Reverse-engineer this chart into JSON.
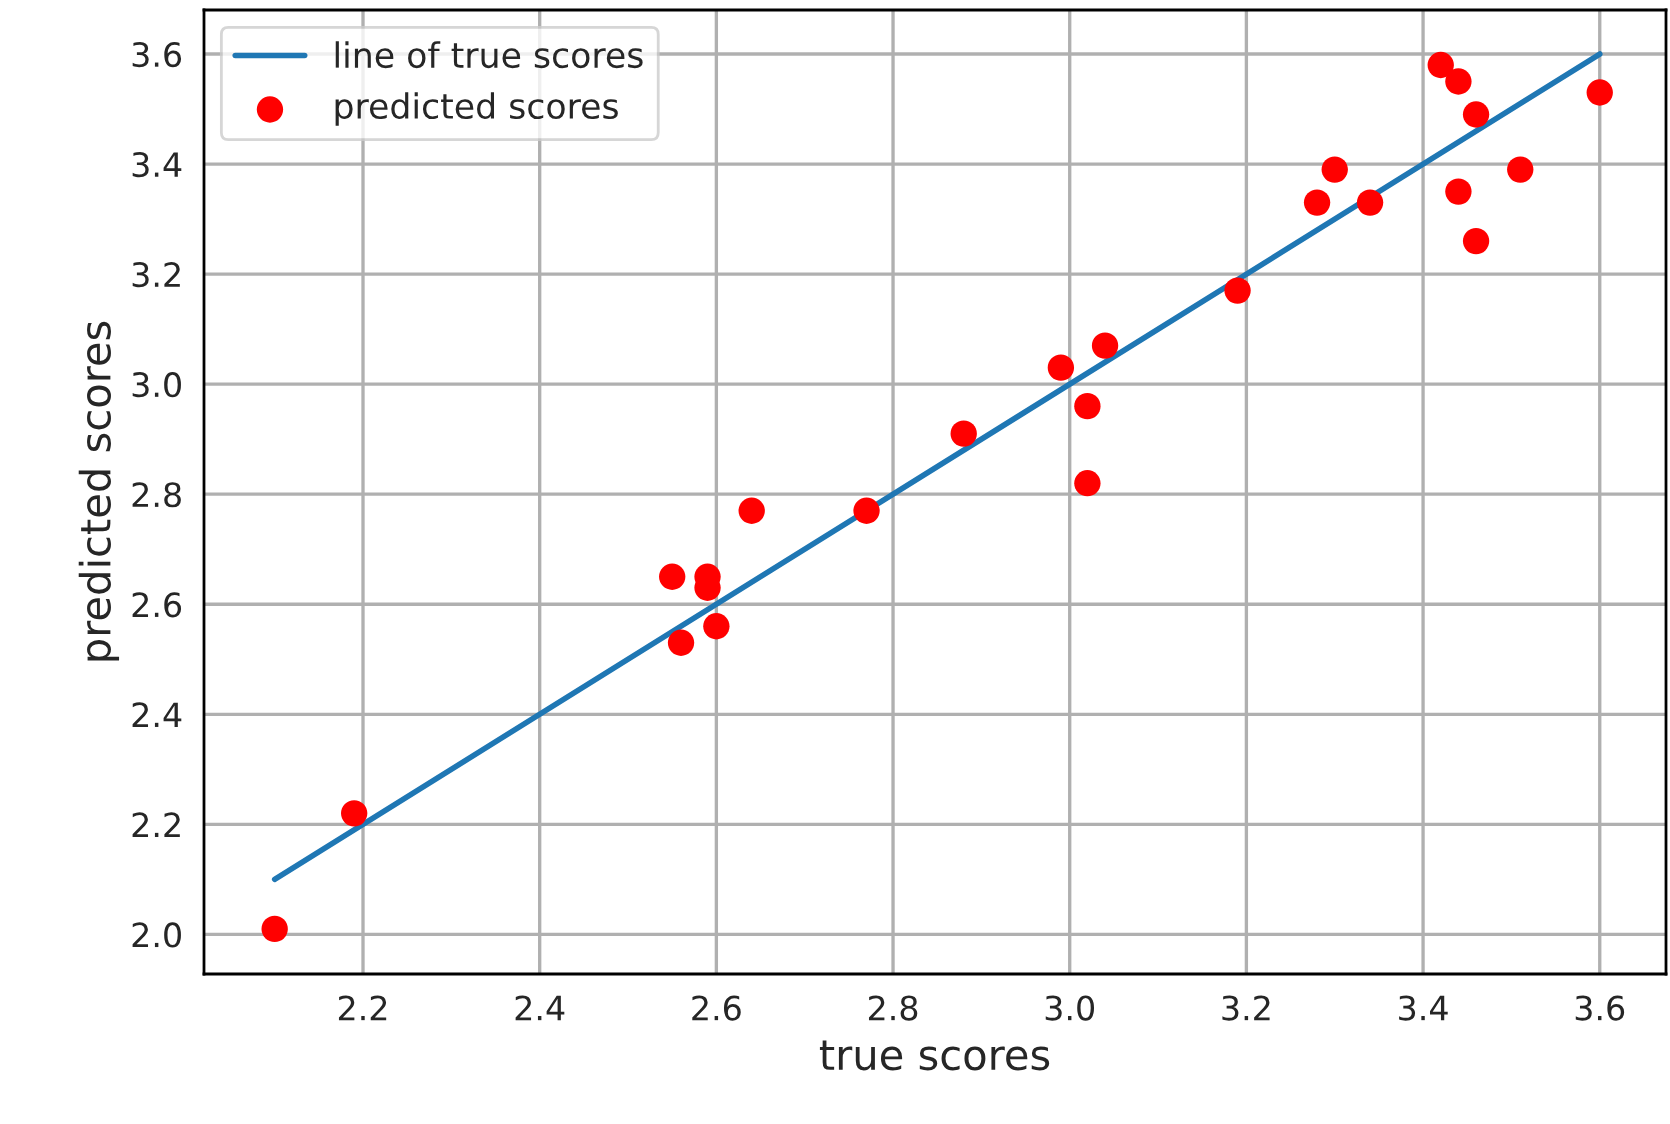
{
  "chart_data": {
    "type": "scatter",
    "xlabel": "true scores",
    "ylabel": "predicted scores",
    "xlim": [
      2.02,
      3.675
    ],
    "ylim": [
      1.928,
      3.68
    ],
    "xticks": [
      {
        "value": 2.2,
        "label": "2.2"
      },
      {
        "value": 2.4,
        "label": "2.4"
      },
      {
        "value": 2.6,
        "label": "2.6"
      },
      {
        "value": 2.8,
        "label": "2.8"
      },
      {
        "value": 3.0,
        "label": "3.0"
      },
      {
        "value": 3.2,
        "label": "3.2"
      },
      {
        "value": 3.4,
        "label": "3.4"
      },
      {
        "value": 3.6,
        "label": "3.6"
      }
    ],
    "yticks": [
      {
        "value": 2.0,
        "label": "2.0"
      },
      {
        "value": 2.2,
        "label": "2.2"
      },
      {
        "value": 2.4,
        "label": "2.4"
      },
      {
        "value": 2.6,
        "label": "2.6"
      },
      {
        "value": 2.8,
        "label": "2.8"
      },
      {
        "value": 3.0,
        "label": "3.0"
      },
      {
        "value": 3.2,
        "label": "3.2"
      },
      {
        "value": 3.4,
        "label": "3.4"
      },
      {
        "value": 3.6,
        "label": "3.6"
      }
    ],
    "grid": true,
    "legend": "top left",
    "series": [
      {
        "name": "line of true scores",
        "type": "line",
        "color": "#1f77b4",
        "marker": "none",
        "line_style": "solid",
        "x": [
          2.1,
          3.6
        ],
        "values": [
          2.1,
          3.6
        ]
      },
      {
        "name": "predicted scores",
        "color": "#ff0000",
        "marker": "circle",
        "x": [
          2.1,
          2.19,
          2.55,
          2.56,
          2.59,
          2.59,
          2.6,
          2.64,
          2.77,
          2.88,
          2.99,
          3.02,
          3.02,
          3.04,
          3.19,
          3.28,
          3.3,
          3.34,
          3.42,
          3.44,
          3.46,
          3.44,
          3.46,
          3.51,
          3.6
        ],
        "values": [
          2.01,
          2.22,
          2.65,
          2.53,
          2.65,
          2.63,
          2.56,
          2.77,
          2.77,
          2.91,
          3.03,
          2.96,
          2.82,
          3.07,
          3.17,
          3.33,
          3.39,
          3.33,
          3.58,
          3.55,
          3.49,
          3.35,
          3.26,
          3.39,
          3.53
        ]
      }
    ]
  }
}
